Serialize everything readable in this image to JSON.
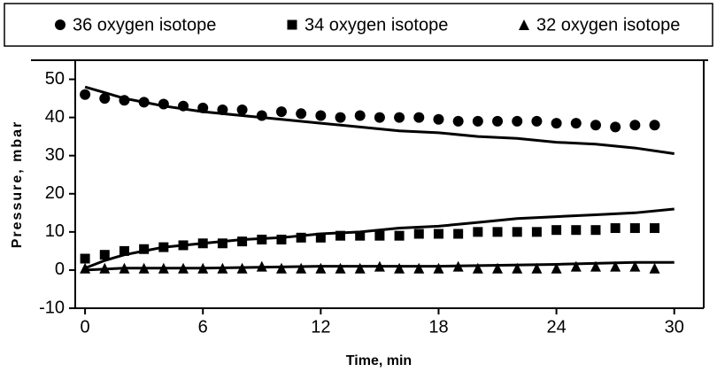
{
  "chart_data": {
    "type": "scatter",
    "xlabel": "Time, min",
    "ylabel": "Pressure, mbar",
    "xlim": [
      -0.5,
      31.5
    ],
    "ylim": [
      -10,
      55
    ],
    "xticks": [
      0,
      6,
      12,
      18,
      24,
      30
    ],
    "yticks": [
      -10,
      0,
      10,
      20,
      30,
      40,
      50
    ],
    "series": [
      {
        "name": "36 oxygen isotope",
        "marker": "circle",
        "color": "#000000",
        "x": [
          0,
          1,
          2,
          3,
          4,
          5,
          6,
          7,
          8,
          9,
          10,
          11,
          12,
          13,
          14,
          15,
          16,
          17,
          18,
          19,
          20,
          21,
          22,
          23,
          24,
          25,
          26,
          27,
          28,
          29
        ],
        "values": [
          46,
          45,
          44.5,
          44,
          43.5,
          43,
          42.5,
          42,
          42,
          40.5,
          41.5,
          41,
          40.5,
          40,
          40.5,
          40,
          40,
          40,
          39.5,
          39,
          39,
          39,
          39,
          39,
          38.5,
          38.5,
          38,
          37.5,
          38,
          38
        ]
      },
      {
        "name": "34 oxygen isotope",
        "marker": "square",
        "color": "#000000",
        "x": [
          0,
          1,
          2,
          3,
          4,
          5,
          6,
          7,
          8,
          9,
          10,
          11,
          12,
          13,
          14,
          15,
          16,
          17,
          18,
          19,
          20,
          21,
          22,
          23,
          24,
          25,
          26,
          27,
          28,
          29
        ],
        "values": [
          3,
          4,
          5,
          5.5,
          6,
          6.5,
          7,
          7,
          7.5,
          8,
          8,
          8.5,
          8.5,
          9,
          9,
          9,
          9,
          9.5,
          9.5,
          9.5,
          10,
          10,
          10,
          10,
          10.5,
          10.5,
          10.5,
          11,
          11,
          11
        ]
      },
      {
        "name": "32 oxygen isotope",
        "marker": "triangle",
        "color": "#000000",
        "x": [
          0,
          1,
          2,
          3,
          4,
          5,
          6,
          7,
          8,
          9,
          10,
          11,
          12,
          13,
          14,
          15,
          16,
          17,
          18,
          19,
          20,
          21,
          22,
          23,
          24,
          25,
          26,
          27,
          28,
          29
        ],
        "values": [
          0.5,
          0.5,
          0.5,
          0.5,
          0.5,
          0.5,
          0.5,
          0.5,
          0.5,
          1,
          0.5,
          0.5,
          0.5,
          0.5,
          0.5,
          1,
          0.5,
          0.5,
          0.5,
          1,
          0.5,
          0.5,
          0.5,
          0.5,
          0.5,
          1,
          1,
          1,
          1,
          0.5
        ]
      }
    ],
    "fit_lines": [
      {
        "color": "#000000",
        "x": [
          0,
          1,
          2,
          3,
          4,
          6,
          8,
          10,
          12,
          14,
          16,
          18,
          20,
          22,
          24,
          26,
          28,
          30
        ],
        "values": [
          48,
          46.5,
          45,
          44,
          43,
          41.5,
          40.5,
          39.5,
          38.5,
          37.5,
          36.5,
          36,
          35,
          34.5,
          33.5,
          33,
          32,
          30.5
        ]
      },
      {
        "color": "#000000",
        "x": [
          0,
          1,
          2,
          3,
          4,
          6,
          8,
          10,
          12,
          14,
          16,
          18,
          20,
          22,
          24,
          26,
          28,
          30
        ],
        "values": [
          0.5,
          2.5,
          4,
          5,
          6,
          7,
          8,
          8.5,
          9.5,
          10,
          11,
          11.5,
          12.5,
          13.5,
          14,
          14.5,
          15,
          16
        ]
      },
      {
        "color": "#000000",
        "x": [
          0,
          2,
          6,
          12,
          18,
          24,
          28,
          30
        ],
        "values": [
          0,
          0.5,
          0.5,
          1,
          1,
          1.5,
          2,
          2
        ]
      }
    ]
  }
}
